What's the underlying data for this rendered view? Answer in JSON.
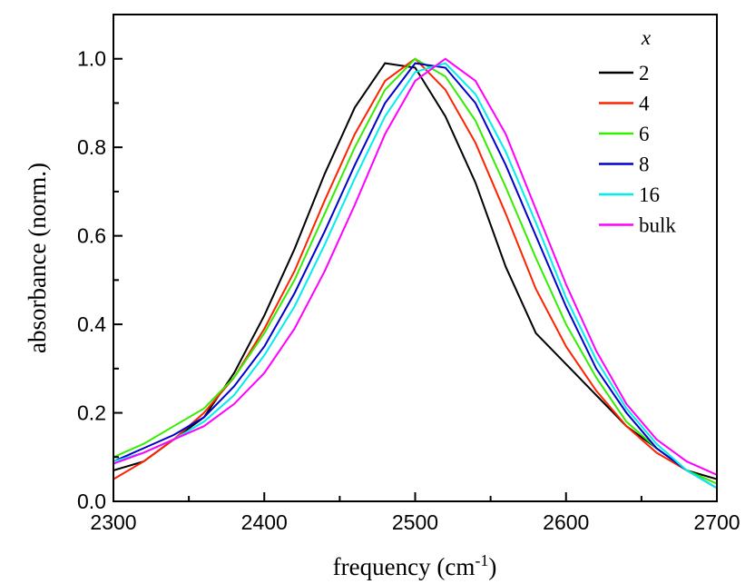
{
  "chart_data": {
    "type": "line",
    "xlabel": [
      "frequency (cm",
      "-1",
      ")"
    ],
    "ylabel": "absorbance (norm.)",
    "legend_title": "x",
    "legend": "upper right",
    "x": [
      2300,
      2320,
      2340,
      2360,
      2380,
      2400,
      2420,
      2440,
      2460,
      2480,
      2500,
      2520,
      2540,
      2560,
      2580,
      2600,
      2620,
      2640,
      2660,
      2680,
      2700
    ],
    "series": [
      {
        "name": "2",
        "color": "#000000",
        "values": [
          0.07,
          0.09,
          0.14,
          0.19,
          0.29,
          0.42,
          0.57,
          0.74,
          0.89,
          0.99,
          0.98,
          0.87,
          0.72,
          0.53,
          0.38,
          0.31,
          0.24,
          0.17,
          0.12,
          0.07,
          0.05
        ]
      },
      {
        "name": "4",
        "color": "#ff2200",
        "values": [
          0.05,
          0.09,
          0.14,
          0.2,
          0.28,
          0.39,
          0.52,
          0.68,
          0.83,
          0.95,
          1.0,
          0.93,
          0.81,
          0.65,
          0.48,
          0.35,
          0.25,
          0.17,
          0.11,
          0.07,
          0.04
        ]
      },
      {
        "name": "6",
        "color": "#33ee00",
        "values": [
          0.1,
          0.13,
          0.17,
          0.21,
          0.28,
          0.38,
          0.5,
          0.65,
          0.8,
          0.93,
          1.0,
          0.96,
          0.86,
          0.71,
          0.55,
          0.4,
          0.28,
          0.18,
          0.12,
          0.07,
          0.04
        ]
      },
      {
        "name": "8",
        "color": "#0000cc",
        "values": [
          0.09,
          0.12,
          0.15,
          0.19,
          0.26,
          0.35,
          0.47,
          0.61,
          0.76,
          0.9,
          0.99,
          0.98,
          0.9,
          0.76,
          0.6,
          0.44,
          0.3,
          0.2,
          0.12,
          0.07,
          0.03
        ]
      },
      {
        "name": "16",
        "color": "#00eeee",
        "values": [
          0.09,
          0.11,
          0.14,
          0.18,
          0.24,
          0.33,
          0.44,
          0.58,
          0.73,
          0.87,
          0.97,
          0.99,
          0.92,
          0.79,
          0.63,
          0.46,
          0.32,
          0.21,
          0.13,
          0.07,
          0.03
        ]
      },
      {
        "name": "bulk",
        "color": "#ff00ff",
        "values": [
          0.085,
          0.11,
          0.14,
          0.17,
          0.22,
          0.29,
          0.39,
          0.52,
          0.67,
          0.83,
          0.95,
          1.0,
          0.95,
          0.83,
          0.66,
          0.49,
          0.34,
          0.22,
          0.14,
          0.09,
          0.06
        ]
      }
    ],
    "xlim": [
      2300,
      2700
    ],
    "ylim": [
      0,
      1.1
    ],
    "xticks": [
      2300,
      2400,
      2500,
      2600,
      2700
    ],
    "xminorticks": [
      2350,
      2450,
      2550,
      2650
    ],
    "yticks": [
      {
        "value": 0,
        "label": "0.0"
      },
      0.2,
      0.4,
      0.6,
      0.8,
      {
        "value": 1,
        "label": "1.0"
      }
    ],
    "yminorticks": [
      0.1,
      0.3,
      0.5,
      0.7,
      0.9
    ]
  }
}
